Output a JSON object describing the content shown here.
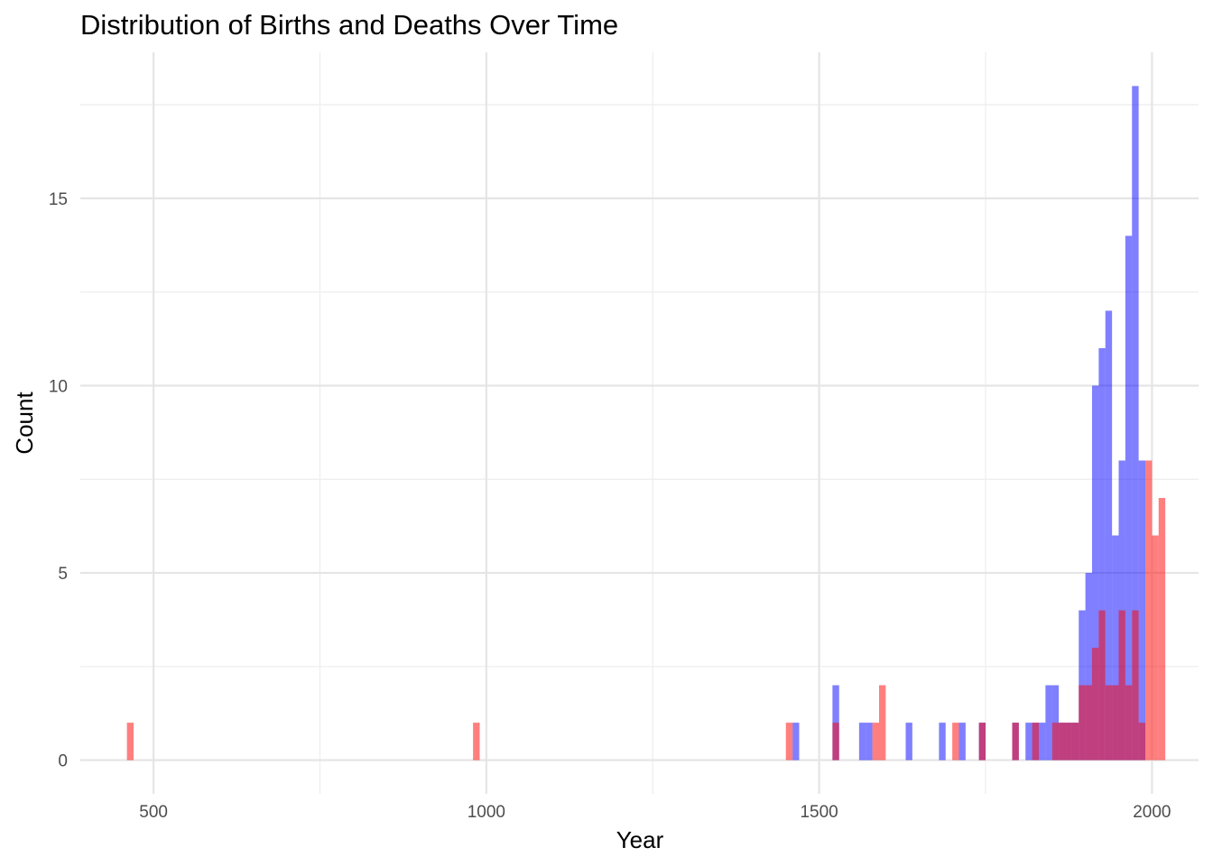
{
  "chart_data": {
    "type": "bar",
    "subtype": "histogram",
    "title": "Distribution of Births and Deaths Over Time",
    "xlabel": "Year",
    "ylabel": "Count",
    "xlim": [
      390,
      2070
    ],
    "ylim": [
      -0.9,
      18.9
    ],
    "x_ticks": [
      500,
      1000,
      1500,
      2000
    ],
    "y_ticks": [
      0,
      5,
      10,
      15
    ],
    "grid": true,
    "legend": "none",
    "bin_width": 10,
    "colors": {
      "births": "#7f7fff",
      "deaths": "#ff8080",
      "overlap": "#c0407f"
    },
    "series": [
      {
        "key": "births",
        "color": "#7f7fff",
        "bins": [
          [
            1465,
            1
          ],
          [
            1525,
            2
          ],
          [
            1565,
            1
          ],
          [
            1575,
            1
          ],
          [
            1635,
            1
          ],
          [
            1685,
            1
          ],
          [
            1715,
            1
          ],
          [
            1745,
            1
          ],
          [
            1795,
            1
          ],
          [
            1815,
            1
          ],
          [
            1825,
            1
          ],
          [
            1835,
            1
          ],
          [
            1845,
            2
          ],
          [
            1855,
            2
          ],
          [
            1865,
            1
          ],
          [
            1875,
            1
          ],
          [
            1885,
            1
          ],
          [
            1895,
            4
          ],
          [
            1905,
            5
          ],
          [
            1915,
            10
          ],
          [
            1925,
            11
          ],
          [
            1935,
            12
          ],
          [
            1945,
            6
          ],
          [
            1955,
            8
          ],
          [
            1965,
            14
          ],
          [
            1975,
            18
          ],
          [
            1985,
            8
          ]
        ]
      },
      {
        "key": "deaths",
        "color": "#ff8080",
        "bins": [
          [
            465,
            1
          ],
          [
            985,
            1
          ],
          [
            1455,
            1
          ],
          [
            1525,
            1
          ],
          [
            1585,
            1
          ],
          [
            1595,
            2
          ],
          [
            1705,
            1
          ],
          [
            1745,
            1
          ],
          [
            1795,
            1
          ],
          [
            1825,
            1
          ],
          [
            1855,
            1
          ],
          [
            1865,
            1
          ],
          [
            1875,
            1
          ],
          [
            1885,
            1
          ],
          [
            1895,
            2
          ],
          [
            1905,
            2
          ],
          [
            1915,
            3
          ],
          [
            1925,
            4
          ],
          [
            1935,
            2
          ],
          [
            1945,
            2
          ],
          [
            1955,
            4
          ],
          [
            1965,
            2
          ],
          [
            1975,
            4
          ],
          [
            1985,
            1
          ],
          [
            1995,
            8
          ],
          [
            2005,
            6
          ],
          [
            2015,
            7
          ]
        ]
      }
    ]
  }
}
